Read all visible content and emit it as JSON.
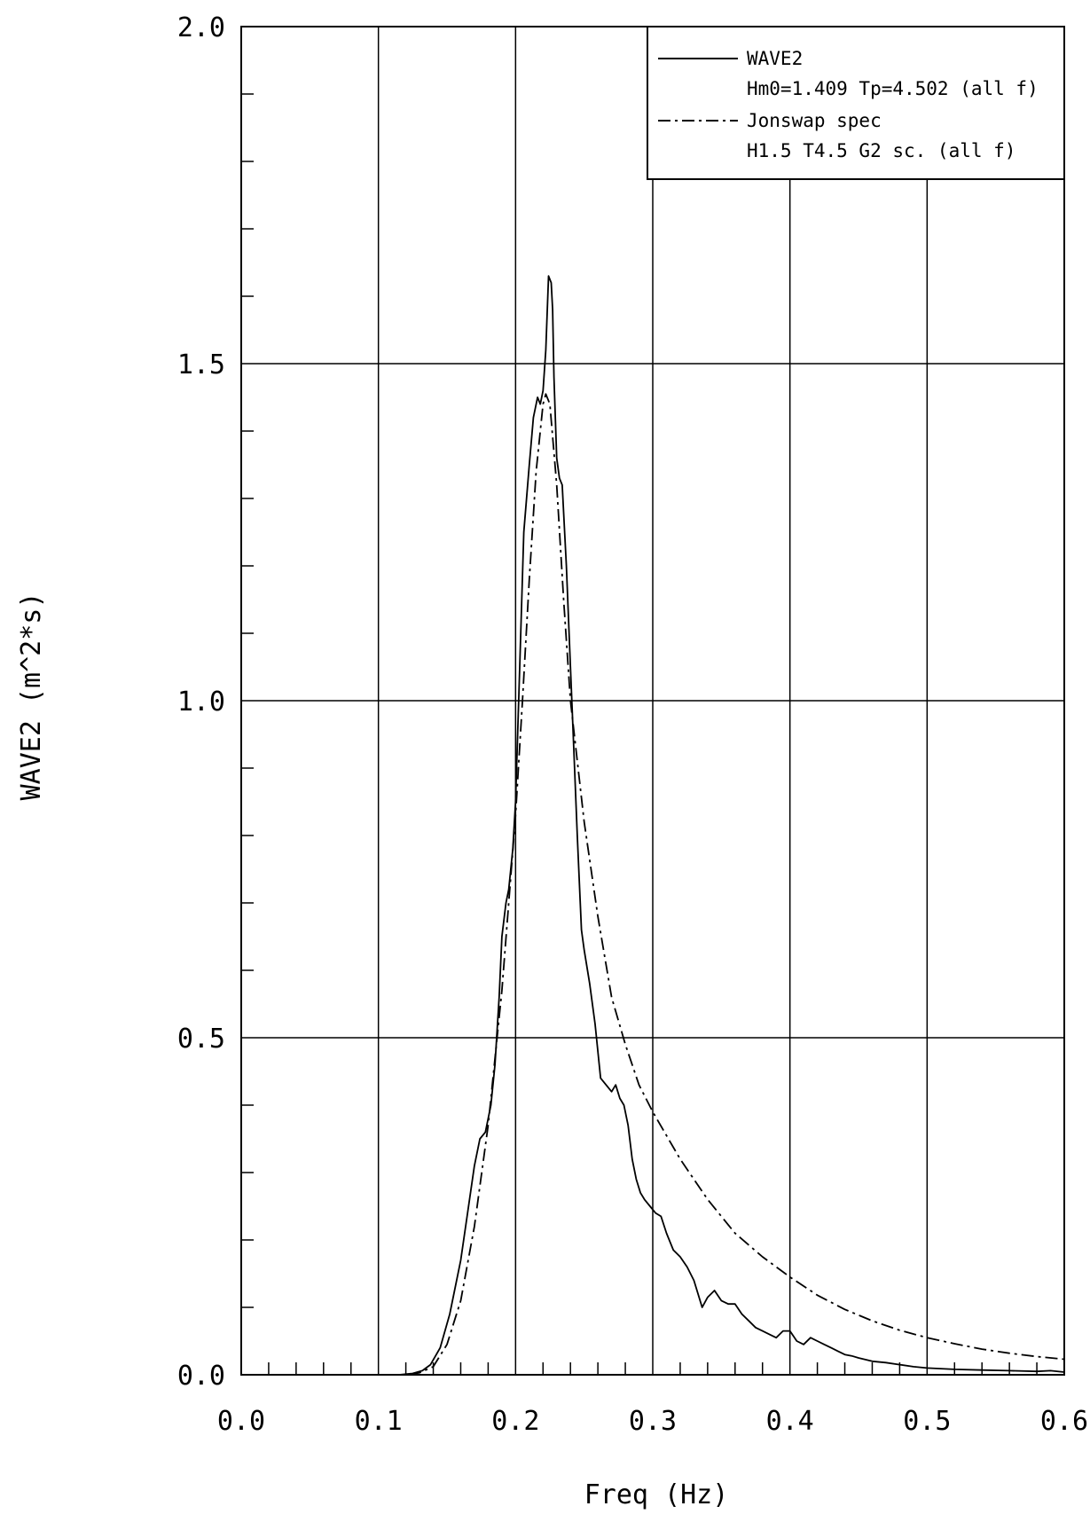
{
  "chart_data": {
    "type": "line",
    "title": "",
    "xlabel": "Freq (Hz)",
    "ylabel": "WAVE2 (m^2*s)",
    "xlim": [
      0.0,
      0.6
    ],
    "ylim": [
      0.0,
      2.0
    ],
    "grid": true,
    "legend_position": "top-right",
    "x_tick_labels": [
      "0.0",
      "0.1",
      "0.2",
      "0.3",
      "0.4",
      "0.5",
      "0.6"
    ],
    "y_tick_labels": [
      "0.0",
      "0.5",
      "1.0",
      "1.5",
      "2.0"
    ],
    "series": [
      {
        "name": "WAVE2",
        "legend_detail": "Hm0=1.409 Tp=4.502 (all f)",
        "line_style": "solid",
        "x": [
          0.0,
          0.05,
          0.1,
          0.115,
          0.125,
          0.132,
          0.138,
          0.145,
          0.152,
          0.16,
          0.165,
          0.17,
          0.174,
          0.178,
          0.182,
          0.185,
          0.188,
          0.19,
          0.193,
          0.195,
          0.198,
          0.2,
          0.203,
          0.206,
          0.208,
          0.21,
          0.213,
          0.216,
          0.218,
          0.22,
          0.222,
          0.224,
          0.226,
          0.227,
          0.228,
          0.23,
          0.232,
          0.234,
          0.237,
          0.24,
          0.242,
          0.245,
          0.248,
          0.25,
          0.254,
          0.258,
          0.262,
          0.266,
          0.27,
          0.273,
          0.276,
          0.279,
          0.282,
          0.285,
          0.288,
          0.291,
          0.294,
          0.298,
          0.302,
          0.306,
          0.31,
          0.315,
          0.32,
          0.325,
          0.33,
          0.336,
          0.34,
          0.345,
          0.35,
          0.355,
          0.36,
          0.365,
          0.37,
          0.375,
          0.38,
          0.385,
          0.39,
          0.395,
          0.4,
          0.405,
          0.41,
          0.415,
          0.42,
          0.425,
          0.43,
          0.435,
          0.44,
          0.445,
          0.45,
          0.46,
          0.47,
          0.48,
          0.49,
          0.5,
          0.52,
          0.54,
          0.56,
          0.58,
          0.59,
          0.6
        ],
        "y": [
          0.0,
          0.0,
          0.0,
          0.0,
          0.002,
          0.006,
          0.015,
          0.04,
          0.09,
          0.17,
          0.24,
          0.31,
          0.35,
          0.36,
          0.4,
          0.46,
          0.56,
          0.65,
          0.7,
          0.72,
          0.78,
          0.85,
          1.05,
          1.25,
          1.3,
          1.35,
          1.42,
          1.45,
          1.44,
          1.46,
          1.52,
          1.63,
          1.62,
          1.58,
          1.48,
          1.36,
          1.33,
          1.32,
          1.2,
          1.05,
          0.95,
          0.8,
          0.66,
          0.63,
          0.58,
          0.52,
          0.44,
          0.43,
          0.42,
          0.43,
          0.41,
          0.4,
          0.37,
          0.32,
          0.29,
          0.27,
          0.26,
          0.25,
          0.24,
          0.235,
          0.21,
          0.185,
          0.175,
          0.16,
          0.14,
          0.1,
          0.115,
          0.125,
          0.11,
          0.105,
          0.105,
          0.09,
          0.08,
          0.07,
          0.065,
          0.06,
          0.055,
          0.065,
          0.065,
          0.05,
          0.045,
          0.055,
          0.05,
          0.045,
          0.04,
          0.035,
          0.03,
          0.028,
          0.025,
          0.02,
          0.018,
          0.015,
          0.012,
          0.01,
          0.008,
          0.007,
          0.006,
          0.005,
          0.006,
          0.004
        ]
      },
      {
        "name": "Jonswap spec",
        "legend_detail": "H1.5 T4.5 G2 sc. (all f)",
        "line_style": "dash-dot",
        "x": [
          0.0,
          0.1,
          0.12,
          0.13,
          0.14,
          0.15,
          0.16,
          0.17,
          0.18,
          0.19,
          0.2,
          0.205,
          0.21,
          0.215,
          0.22,
          0.222,
          0.225,
          0.23,
          0.235,
          0.24,
          0.25,
          0.26,
          0.27,
          0.28,
          0.29,
          0.3,
          0.32,
          0.34,
          0.36,
          0.38,
          0.4,
          0.42,
          0.44,
          0.46,
          0.48,
          0.5,
          0.52,
          0.54,
          0.56,
          0.58,
          0.6
        ],
        "y": [
          0.0,
          0.0,
          0.0,
          0.003,
          0.012,
          0.045,
          0.11,
          0.22,
          0.37,
          0.57,
          0.83,
          1.0,
          1.18,
          1.34,
          1.44,
          1.455,
          1.44,
          1.32,
          1.15,
          1.0,
          0.82,
          0.68,
          0.56,
          0.49,
          0.43,
          0.39,
          0.32,
          0.26,
          0.21,
          0.175,
          0.145,
          0.118,
          0.097,
          0.08,
          0.066,
          0.055,
          0.046,
          0.038,
          0.032,
          0.027,
          0.023
        ]
      }
    ]
  }
}
